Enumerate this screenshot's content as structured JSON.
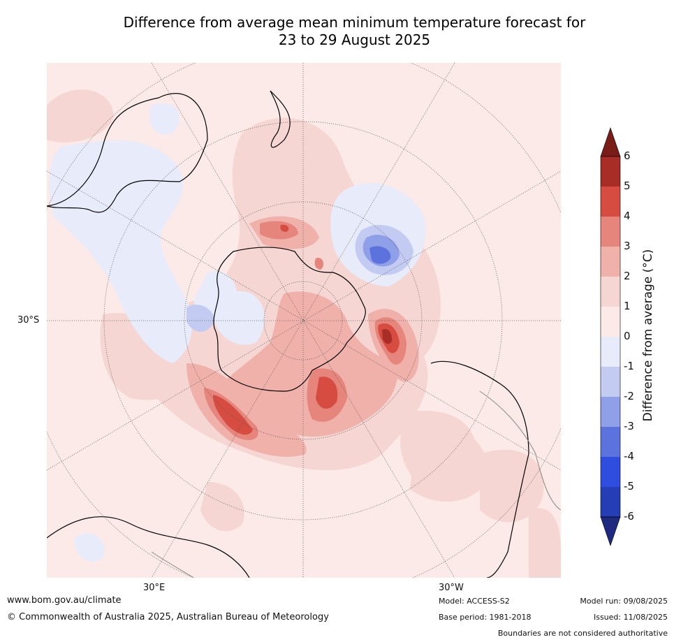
{
  "title": {
    "line1": "Difference from average mean minimum temperature forecast for",
    "line2": "23 to 29 August 2025"
  },
  "map": {
    "projection": "south polar stereographic",
    "lat_label": "30°S",
    "lon_labels": {
      "east": "30°E",
      "west": "30°W"
    },
    "colors": {
      "ocean_land_base": "#fbeae8",
      "graticule": "#555555",
      "coast": "#000000",
      "border": "#888888"
    }
  },
  "colorbar": {
    "title": "Difference from average (°C)",
    "ticks": [
      "6",
      "5",
      "4",
      "3",
      "2",
      "1",
      "0",
      "-1",
      "-2",
      "-3",
      "-4",
      "-5",
      "-6"
    ],
    "bins": [
      {
        "range": [
          5,
          6
        ],
        "color": "#a72d26"
      },
      {
        "range": [
          4,
          5
        ],
        "color": "#d64c40"
      },
      {
        "range": [
          3,
          4
        ],
        "color": "#e6857b"
      },
      {
        "range": [
          2,
          3
        ],
        "color": "#efb1aa"
      },
      {
        "range": [
          1,
          2
        ],
        "color": "#f5d6d3"
      },
      {
        "range": [
          0,
          1
        ],
        "color": "#fbeae8"
      },
      {
        "range": [
          -1,
          0
        ],
        "color": "#e7ebfa"
      },
      {
        "range": [
          -2,
          -1
        ],
        "color": "#c4cbf2"
      },
      {
        "range": [
          -3,
          -2
        ],
        "color": "#8f9fe8"
      },
      {
        "range": [
          -4,
          -3
        ],
        "color": "#5c72dc"
      },
      {
        "range": [
          -5,
          -4
        ],
        "color": "#2f4ee0"
      },
      {
        "range": [
          -6,
          -5
        ],
        "color": "#253db5"
      }
    ],
    "extend_high_color": "#7a1d18",
    "extend_low_color": "#1d2a80"
  },
  "footer": {
    "url": "www.bom.gov.au/climate",
    "copyright": "© Commonwealth of Australia 2025, Australian Bureau of Meteorology",
    "model": "Model: ACCESS-S2",
    "base_period": "Base period: 1981-2018",
    "model_run": "Model run: 09/08/2025",
    "issued": "Issued: 11/08/2025",
    "disclaimer": "Boundaries are not considered authoritative"
  }
}
